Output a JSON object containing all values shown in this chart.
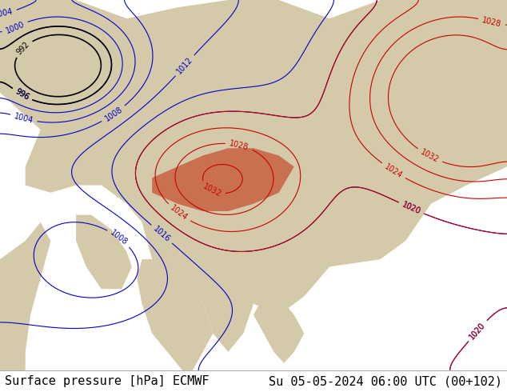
{
  "title_left": "Surface pressure [hPa] ECMWF",
  "title_right": "Su 05-05-2024 06:00 UTC (00+102)",
  "background_color": "#ffffff",
  "text_color": "#000000",
  "title_fontsize": 11,
  "figsize": [
    6.34,
    4.9
  ],
  "dpi": 100,
  "map_background": "#c8dce8",
  "land_color": "#d4c9a8",
  "mountain_color": "#c87050",
  "isobar_blue_color": "#0000cc",
  "isobar_black_color": "#000000",
  "isobar_red_color": "#cc0000",
  "label_fontsize": 7,
  "bottom_bar_color": "#f0f0f0",
  "bottom_bar_height": 0.055
}
